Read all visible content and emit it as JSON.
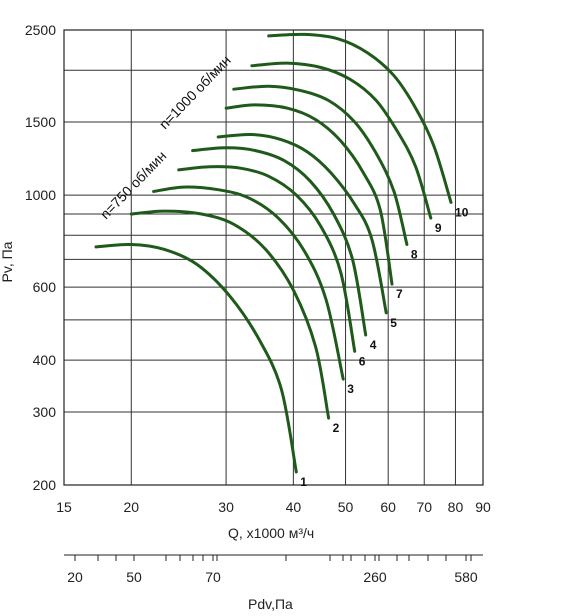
{
  "chart_data": {
    "type": "line",
    "xlabel": "Q, x1000 м³/ч",
    "ylabel": "Pv, Па",
    "x_scale": "log",
    "y_scale": "log",
    "xlim": [
      15,
      90
    ],
    "ylim": [
      200,
      2500
    ],
    "x_ticks": [
      15,
      20,
      30,
      40,
      50,
      60,
      70,
      80,
      90
    ],
    "y_ticks": [
      200,
      300,
      400,
      600,
      1000,
      1500,
      2500
    ],
    "y_gridlines": [
      200,
      300,
      400,
      500,
      600,
      700,
      800,
      900,
      1000,
      1500,
      2000,
      2500
    ],
    "grid": true,
    "line_color": "#1f5a1b",
    "speed_annotations": [
      "n=1000 об/мин",
      "n=750 об/мин"
    ],
    "series": [
      {
        "name": "1",
        "x": [
          17.2,
          20.0,
          23.0,
          26.5,
          30.5,
          34.5,
          38.0,
          40.5
        ],
        "y": [
          750,
          760,
          740,
          680,
          570,
          450,
          340,
          215
        ]
      },
      {
        "name": "2",
        "x": [
          20.0,
          23.0,
          27.0,
          31.0,
          35.5,
          40.0,
          44.0,
          46.5
        ],
        "y": [
          900,
          915,
          900,
          850,
          740,
          590,
          430,
          290
        ]
      },
      {
        "name": "3",
        "x": [
          22.0,
          25.0,
          29.0,
          33.0,
          37.5,
          42.0,
          46.0,
          49.5
        ],
        "y": [
          1020,
          1045,
          1030,
          985,
          880,
          730,
          560,
          360
        ]
      },
      {
        "name": "6",
        "x": [
          24.5,
          28.0,
          32.0,
          36.0,
          40.5,
          45.0,
          49.0,
          52.0
        ],
        "y": [
          1150,
          1170,
          1160,
          1110,
          1000,
          840,
          650,
          420
        ]
      },
      {
        "name": "4",
        "x": [
          26.0,
          30.0,
          34.0,
          38.5,
          43.0,
          47.5,
          51.5,
          54.5
        ],
        "y": [
          1280,
          1300,
          1280,
          1210,
          1080,
          900,
          700,
          460
        ]
      },
      {
        "name": "5",
        "x": [
          29.0,
          33.5,
          38.0,
          42.5,
          47.0,
          52.0,
          56.0,
          59.5
        ],
        "y": [
          1380,
          1400,
          1360,
          1270,
          1130,
          950,
          780,
          520
        ]
      },
      {
        "name": "7",
        "x": [
          30.0,
          34.0,
          39.0,
          44.0,
          49.0,
          54.0,
          58.0,
          61.0
        ],
        "y": [
          1620,
          1650,
          1620,
          1520,
          1350,
          1130,
          920,
          610
        ]
      },
      {
        "name": "8",
        "x": [
          31.0,
          36.0,
          41.0,
          46.5,
          52.0,
          57.0,
          61.5,
          65.0
        ],
        "y": [
          1800,
          1830,
          1790,
          1690,
          1500,
          1260,
          1020,
          760
        ]
      },
      {
        "name": "9",
        "x": [
          33.5,
          39.0,
          45.0,
          51.0,
          57.0,
          62.5,
          67.5,
          72.0
        ],
        "y": [
          2050,
          2080,
          2030,
          1900,
          1690,
          1420,
          1170,
          880
        ]
      },
      {
        "name": "10",
        "x": [
          36.0,
          42.0,
          48.5,
          55.0,
          61.5,
          67.5,
          73.0,
          78.5
        ],
        "y": [
          2420,
          2440,
          2380,
          2200,
          1940,
          1620,
          1310,
          960
        ]
      }
    ],
    "secondary_axis": {
      "label": "Pdv,Па",
      "tick_labels": [
        "20",
        "50",
        "70",
        "260",
        "580"
      ]
    }
  }
}
